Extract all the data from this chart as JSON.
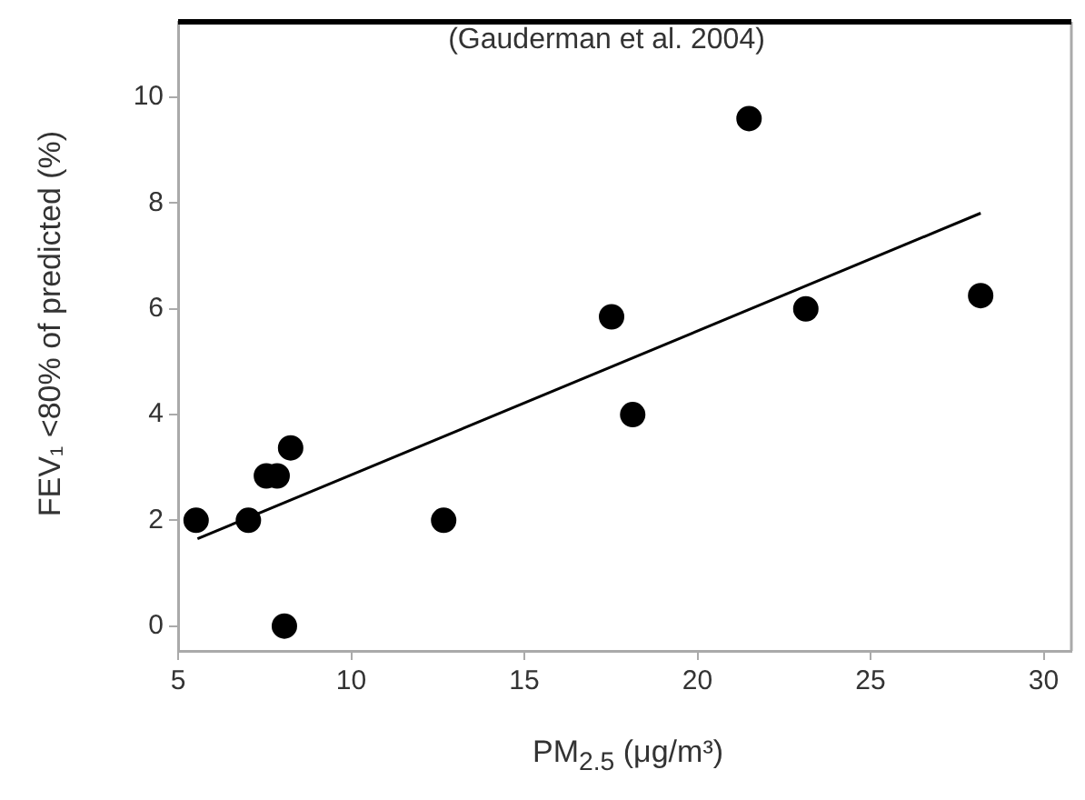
{
  "chart_data": {
    "type": "scatter",
    "xlabel": "PM$_{2.5}$ (μg/m³)",
    "ylabel": "FEV₁ <80% of predicted (%)",
    "annotations": [
      "(Gauderman et al. 2004)"
    ],
    "xlim": [
      5,
      30.8
    ],
    "xticks": [
      5,
      10,
      15,
      20,
      25,
      30
    ],
    "ylim": [
      -0.47,
      11.43
    ],
    "yticks": [
      0,
      2,
      4,
      6,
      8,
      10
    ],
    "grid": false,
    "legend": false,
    "marker": "circle",
    "series": [
      {
        "color": "#000000",
        "x": [
          5.52,
          7.03,
          7.55,
          7.86,
          8.25,
          8.07,
          12.67,
          17.52,
          18.13,
          21.49,
          23.13,
          28.18
        ],
        "values": [
          2,
          2,
          2.84,
          2.84,
          3.37,
          0,
          2,
          5.85,
          4.0,
          9.6,
          6.0,
          6.25
        ]
      },
      {
        "type": "line",
        "color": "#000000",
        "marker": "none",
        "line_style": "solid",
        "x": [
          5.56,
          28.18
        ],
        "values": [
          1.65,
          7.81
        ]
      }
    ]
  }
}
